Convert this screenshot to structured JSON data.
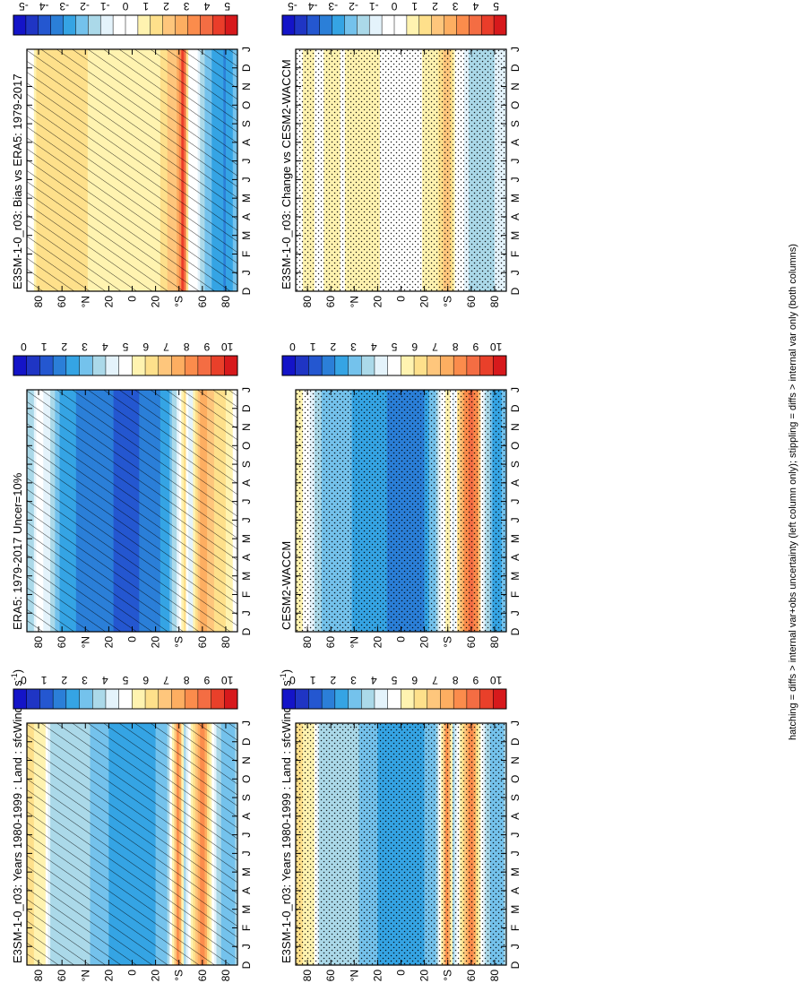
{
  "figure": {
    "footer": "hatching = diffs > internal var+obs uncertainty (left column only); stippling = diffs > internal var only (both columns)"
  },
  "colors": {
    "abs_palette": [
      "#d7191c",
      "#e9402a",
      "#f46d43",
      "#fb8c4c",
      "#fdae61",
      "#fec67c",
      "#fee08b",
      "#fff3b0",
      "#ffffff",
      "#e4f3fb",
      "#abd9e9",
      "#74c2ec",
      "#35a4e4",
      "#2b7fd8",
      "#2457d0",
      "#1f35c4",
      "#1414c8"
    ],
    "diff_palette": [
      "#d7191c",
      "#ea3d2a",
      "#f46d43",
      "#fb8c4c",
      "#fdae61",
      "#fec67c",
      "#fee08b",
      "#fff3b0",
      "#ffffff",
      "#ffffff",
      "#e4f3fb",
      "#abd9e9",
      "#74c2ec",
      "#35a4e4",
      "#2b7fd8",
      "#2457d0",
      "#1f35c4",
      "#1414c8"
    ]
  },
  "colorbars": {
    "abs_ticks": [
      "10",
      "9",
      "8",
      "7",
      "6",
      "5",
      "4",
      "3",
      "2",
      "1",
      "0"
    ],
    "diff_ticks": [
      "5",
      "4",
      "3",
      "2",
      "1",
      "0",
      "-1",
      "-2",
      "-3",
      "-4",
      "-5"
    ]
  },
  "chart_data": [
    {
      "id": "p1",
      "type": "heatmap",
      "title": "E3SM-1-0_r03: Years 1980-1999 : Land : sfcWind (m s-1)",
      "title_main": "E3SM-1-0_r03: Years 1980-1999 : Land : sfcWind (m s",
      "title_sup": "-1",
      "title_end": ")",
      "x_ticks": [
        "D",
        "J",
        "F",
        "M",
        "A",
        "M",
        "J",
        "J",
        "A",
        "S",
        "O",
        "N",
        "D",
        "J"
      ],
      "y_ticks": [
        "80",
        "60",
        "°N",
        "20",
        "0",
        "20",
        "°S",
        "60",
        "80"
      ],
      "ylim": [
        -90,
        90
      ],
      "colorbar": "abs",
      "mark": "hatch",
      "profile": [
        {
          "lat": 85,
          "v": 6
        },
        {
          "lat": 80,
          "v": 5.5
        },
        {
          "lat": 75,
          "v": 5.5
        },
        {
          "lat": 70,
          "v": 4
        },
        {
          "lat": 60,
          "v": 3.8
        },
        {
          "lat": 50,
          "v": 3.5
        },
        {
          "lat": 40,
          "v": 3.6
        },
        {
          "lat": 30,
          "v": 3.2
        },
        {
          "lat": 20,
          "v": 2.8
        },
        {
          "lat": 10,
          "v": 2.4
        },
        {
          "lat": 0,
          "v": 2.2
        },
        {
          "lat": -10,
          "v": 2.5
        },
        {
          "lat": -20,
          "v": 2.8
        },
        {
          "lat": -30,
          "v": 3.4
        },
        {
          "lat": -40,
          "v": 8.4
        },
        {
          "lat": -45,
          "v": 4
        },
        {
          "lat": -50,
          "v": 5.5
        },
        {
          "lat": -55,
          "v": 7
        },
        {
          "lat": -60,
          "v": 8.5
        },
        {
          "lat": -65,
          "v": 6.5
        },
        {
          "lat": -70,
          "v": 4.5
        },
        {
          "lat": -80,
          "v": 2.8
        },
        {
          "lat": -88,
          "v": 3.5
        }
      ]
    },
    {
      "id": "p2",
      "type": "heatmap",
      "title": "E3SM-1-0_r03: Years 1980-1999 : Land : sfcWind (m s-1)",
      "title_main": "E3SM-1-0_r03: Years 1980-1999 : Land : sfcWind (m s",
      "title_sup": "-1",
      "title_end": ")",
      "x_ticks": [
        "D",
        "J",
        "F",
        "M",
        "A",
        "M",
        "J",
        "J",
        "A",
        "S",
        "O",
        "N",
        "D",
        "J"
      ],
      "y_ticks": [
        "80",
        "60",
        "°N",
        "20",
        "0",
        "20",
        "°S",
        "60",
        "80"
      ],
      "ylim": [
        -90,
        90
      ],
      "colorbar": "abs",
      "mark": "stipple",
      "profile": [
        {
          "lat": 85,
          "v": 6
        },
        {
          "lat": 80,
          "v": 5.5
        },
        {
          "lat": 75,
          "v": 5.5
        },
        {
          "lat": 70,
          "v": 4
        },
        {
          "lat": 60,
          "v": 3.8
        },
        {
          "lat": 50,
          "v": 3.5
        },
        {
          "lat": 40,
          "v": 3.6
        },
        {
          "lat": 30,
          "v": 3.2
        },
        {
          "lat": 20,
          "v": 2.8
        },
        {
          "lat": 10,
          "v": 2.4
        },
        {
          "lat": 0,
          "v": 2.2
        },
        {
          "lat": -10,
          "v": 2.5
        },
        {
          "lat": -20,
          "v": 2.8
        },
        {
          "lat": -30,
          "v": 3.4
        },
        {
          "lat": -40,
          "v": 8.4
        },
        {
          "lat": -45,
          "v": 4
        },
        {
          "lat": -50,
          "v": 5.5
        },
        {
          "lat": -55,
          "v": 7
        },
        {
          "lat": -60,
          "v": 8.5
        },
        {
          "lat": -65,
          "v": 6.5
        },
        {
          "lat": -70,
          "v": 4.5
        },
        {
          "lat": -80,
          "v": 2.8
        },
        {
          "lat": -88,
          "v": 3.5
        }
      ]
    },
    {
      "id": "p3",
      "type": "heatmap",
      "title": "ERA5: 1979-2017 Uncer=10%",
      "x_ticks": [
        "D",
        "J",
        "F",
        "M",
        "A",
        "M",
        "J",
        "J",
        "A",
        "S",
        "O",
        "N",
        "D",
        "J"
      ],
      "y_ticks": [
        "80",
        "60",
        "°N",
        "20",
        "0",
        "20",
        "°S",
        "60",
        "80"
      ],
      "ylim": [
        -90,
        90
      ],
      "colorbar": "abs",
      "mark": "hatch",
      "profile": [
        {
          "lat": 85,
          "v": 4
        },
        {
          "lat": 80,
          "v": 5
        },
        {
          "lat": 70,
          "v": 4
        },
        {
          "lat": 60,
          "v": 2.5
        },
        {
          "lat": 40,
          "v": 2
        },
        {
          "lat": 20,
          "v": 1.6
        },
        {
          "lat": 0,
          "v": 1.4
        },
        {
          "lat": -20,
          "v": 2
        },
        {
          "lat": -30,
          "v": 2.5
        },
        {
          "lat": -40,
          "v": 4.5
        },
        {
          "lat": -45,
          "v": 6
        },
        {
          "lat": -50,
          "v": 4
        },
        {
          "lat": -55,
          "v": 6.5
        },
        {
          "lat": -60,
          "v": 7.5
        },
        {
          "lat": -65,
          "v": 7
        },
        {
          "lat": -70,
          "v": 6.5
        },
        {
          "lat": -80,
          "v": 6
        },
        {
          "lat": -88,
          "v": 5
        }
      ]
    },
    {
      "id": "p4",
      "type": "heatmap",
      "title": "CESM2-WACCM",
      "x_ticks": [
        "D",
        "J",
        "F",
        "M",
        "A",
        "M",
        "J",
        "J",
        "A",
        "S",
        "O",
        "N",
        "D",
        "J"
      ],
      "y_ticks": [
        "80",
        "60",
        "°N",
        "20",
        "0",
        "20",
        "°S",
        "60",
        "80"
      ],
      "ylim": [
        -90,
        90
      ],
      "colorbar": "abs",
      "mark": "stipple",
      "profile": [
        {
          "lat": 85,
          "v": 5.5
        },
        {
          "lat": 80,
          "v": 5
        },
        {
          "lat": 70,
          "v": 3.5
        },
        {
          "lat": 60,
          "v": 3
        },
        {
          "lat": 40,
          "v": 2.8
        },
        {
          "lat": 20,
          "v": 2.5
        },
        {
          "lat": 0,
          "v": 1.8
        },
        {
          "lat": -20,
          "v": 2.2
        },
        {
          "lat": -30,
          "v": 3.5
        },
        {
          "lat": -40,
          "v": 6
        },
        {
          "lat": -45,
          "v": 4.5
        },
        {
          "lat": -50,
          "v": 6.5
        },
        {
          "lat": -55,
          "v": 8
        },
        {
          "lat": -60,
          "v": 9
        },
        {
          "lat": -65,
          "v": 8
        },
        {
          "lat": -70,
          "v": 4.5
        },
        {
          "lat": -80,
          "v": 2.5
        },
        {
          "lat": -88,
          "v": 3
        }
      ]
    },
    {
      "id": "p5",
      "type": "heatmap",
      "title": "E3SM-1-0_r03: Bias vs ERA5: 1979-2017",
      "x_ticks": [
        "D",
        "J",
        "F",
        "M",
        "A",
        "M",
        "J",
        "J",
        "A",
        "S",
        "O",
        "N",
        "D",
        "J"
      ],
      "y_ticks": [
        "80",
        "60",
        "°N",
        "20",
        "0",
        "20",
        "°S",
        "60",
        "80"
      ],
      "ylim": [
        -90,
        90
      ],
      "colorbar": "diff",
      "mark": "hatch",
      "profile": [
        {
          "lat": 85,
          "v": 0.5
        },
        {
          "lat": 80,
          "v": 1.5
        },
        {
          "lat": 70,
          "v": 1.3
        },
        {
          "lat": 60,
          "v": 1.6
        },
        {
          "lat": 40,
          "v": 1.2
        },
        {
          "lat": 20,
          "v": 1
        },
        {
          "lat": 0,
          "v": 0.9
        },
        {
          "lat": -20,
          "v": 0.6
        },
        {
          "lat": -30,
          "v": 1.8
        },
        {
          "lat": -40,
          "v": 2.5
        },
        {
          "lat": -44,
          "v": 4.8
        },
        {
          "lat": -48,
          "v": 0.3
        },
        {
          "lat": -55,
          "v": -0.5
        },
        {
          "lat": -60,
          "v": -1.5
        },
        {
          "lat": -70,
          "v": -2.5
        },
        {
          "lat": -80,
          "v": -3
        },
        {
          "lat": -88,
          "v": -2
        }
      ]
    },
    {
      "id": "p6",
      "type": "heatmap",
      "title": "E3SM-1-0_r03: Change vs CESM2-WACCM",
      "x_ticks": [
        "D",
        "J",
        "F",
        "M",
        "A",
        "M",
        "J",
        "J",
        "A",
        "S",
        "O",
        "N",
        "D",
        "J"
      ],
      "y_ticks": [
        "80",
        "60",
        "°N",
        "20",
        "0",
        "20",
        "°S",
        "60",
        "80"
      ],
      "ylim": [
        -90,
        90
      ],
      "colorbar": "diff",
      "mark": "stipple",
      "profile": [
        {
          "lat": 85,
          "v": 0.5
        },
        {
          "lat": 80,
          "v": 0.8
        },
        {
          "lat": 70,
          "v": 0.4
        },
        {
          "lat": 60,
          "v": 1
        },
        {
          "lat": 50,
          "v": 0.5
        },
        {
          "lat": 40,
          "v": 0.8
        },
        {
          "lat": 20,
          "v": 0.6
        },
        {
          "lat": 0,
          "v": 0.4
        },
        {
          "lat": -20,
          "v": 0.6
        },
        {
          "lat": -30,
          "v": 0.8
        },
        {
          "lat": -40,
          "v": 2.2
        },
        {
          "lat": -44,
          "v": 1.2
        },
        {
          "lat": -48,
          "v": 0.2
        },
        {
          "lat": -55,
          "v": -0.8
        },
        {
          "lat": -60,
          "v": -1.4
        },
        {
          "lat": -70,
          "v": -1.6
        },
        {
          "lat": -80,
          "v": -1.2
        },
        {
          "lat": -88,
          "v": -1
        }
      ]
    }
  ]
}
